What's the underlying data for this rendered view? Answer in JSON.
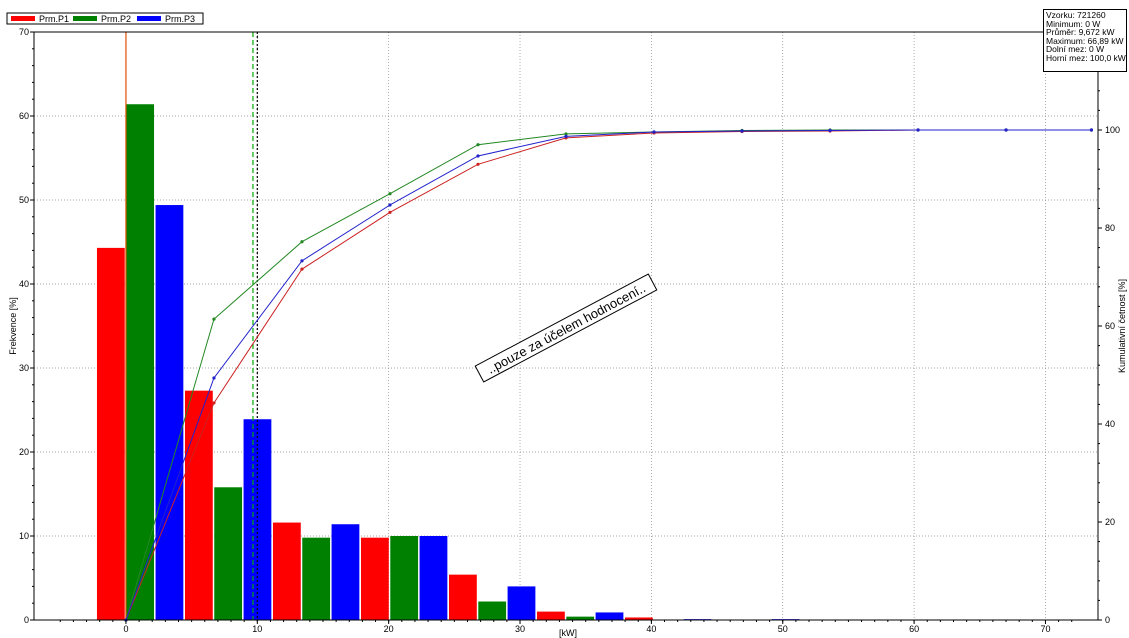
{
  "stats": [
    "Vzorku:  721260",
    "Minimum: 0 W",
    "Průměr: 9,672 kW",
    "Maximum: 66,89 kW",
    "Dolní mez: 0 W",
    "Horní mez: 100,0 kW"
  ],
  "watermark": "..pouze za účelem hodnocení..",
  "chart_data": {
    "type": "bar",
    "xlabel": "[kW]",
    "ylabel": "Frekvence [%]",
    "y2label": "Kumulativní četnost [%]",
    "xlim": [
      -7,
      74
    ],
    "ylim": [
      0,
      70
    ],
    "y2lim": [
      0,
      120
    ],
    "xticks": [
      0,
      10,
      20,
      30,
      40,
      50,
      60,
      70
    ],
    "yticks": [
      0,
      10,
      20,
      30,
      40,
      50,
      60,
      70
    ],
    "y2ticks": [
      0,
      20,
      40,
      60,
      80,
      100
    ],
    "grid": true,
    "legend_position": "top-left",
    "vlines": [
      {
        "x": 0,
        "color": "#e05000",
        "style": "solid"
      },
      {
        "x": 9.67,
        "color": "#00aa00",
        "style": "dashed"
      },
      {
        "x": 10,
        "color": "#000000",
        "style": "dotted"
      }
    ],
    "bin_width": 6.69,
    "bin_centers": [
      1.1,
      7.8,
      14.5,
      21.2,
      27.9,
      34.6,
      41.3,
      48.0
    ],
    "series": [
      {
        "name": "Prm.P1",
        "color": "#ff0000",
        "values": [
          44.3,
          27.3,
          11.6,
          9.8,
          5.4,
          1.0,
          0.3,
          0.0
        ]
      },
      {
        "name": "Prm.P2",
        "color": "#008000",
        "values": [
          61.4,
          15.8,
          9.8,
          10.0,
          2.2,
          0.4,
          0.0,
          0.0
        ]
      },
      {
        "name": "Prm.P3",
        "color": "#0000ff",
        "values": [
          49.4,
          23.9,
          11.4,
          10.0,
          4.0,
          0.9,
          0.1,
          0.1
        ]
      }
    ],
    "cumulative": [
      {
        "name": "Prm.P1",
        "color": "#cc2222",
        "x": [
          0,
          6.7,
          13.4,
          20.1,
          26.8,
          33.5,
          40.2,
          46.9,
          53.6,
          60.3,
          67.0,
          73.5
        ],
        "y": [
          0,
          44.3,
          71.6,
          83.2,
          93.0,
          98.4,
          99.4,
          99.7,
          99.8,
          100,
          100,
          100
        ]
      },
      {
        "name": "Prm.P2",
        "color": "#228822",
        "x": [
          0,
          6.7,
          13.4,
          20.1,
          26.8,
          33.5,
          40.2,
          46.9,
          53.6,
          60.3,
          67.0,
          73.5
        ],
        "y": [
          0,
          61.4,
          77.2,
          87.0,
          97.0,
          99.2,
          99.6,
          99.9,
          100,
          100,
          100,
          100
        ]
      },
      {
        "name": "Prm.P3",
        "color": "#2222cc",
        "x": [
          0,
          6.7,
          13.4,
          20.1,
          26.8,
          33.5,
          40.2,
          46.9,
          53.6,
          60.3,
          67.0,
          73.5
        ],
        "y": [
          0,
          49.4,
          73.3,
          84.7,
          94.7,
          98.7,
          99.6,
          99.8,
          99.9,
          100,
          100,
          100
        ]
      }
    ]
  }
}
